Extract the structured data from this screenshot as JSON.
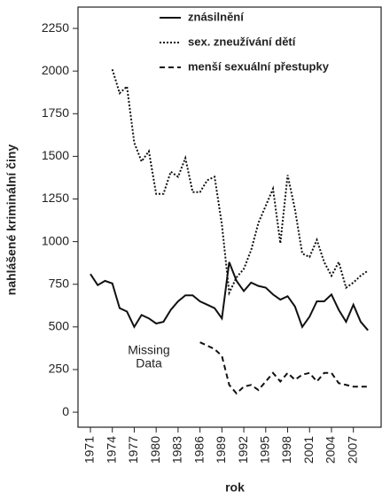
{
  "chart_data": {
    "type": "line",
    "x_label": "rok",
    "y_label": "nahlášené kriminální činy",
    "x": [
      1971,
      1972,
      1973,
      1974,
      1975,
      1976,
      1977,
      1978,
      1979,
      1980,
      1981,
      1982,
      1983,
      1984,
      1985,
      1986,
      1987,
      1988,
      1989,
      1990,
      1991,
      1992,
      1993,
      1994,
      1995,
      1996,
      1997,
      1998,
      1999,
      2000,
      2001,
      2002,
      2003,
      2004,
      2005,
      2006,
      2007,
      2008,
      2009
    ],
    "series": [
      {
        "name": "znásilnění",
        "color": "#111111",
        "style": "solid",
        "values": [
          810,
          745,
          770,
          755,
          610,
          590,
          500,
          570,
          550,
          520,
          530,
          600,
          650,
          685,
          685,
          650,
          630,
          610,
          550,
          880,
          770,
          710,
          760,
          740,
          730,
          690,
          660,
          680,
          620,
          500,
          560,
          650,
          650,
          690,
          600,
          530,
          630,
          530,
          480
        ]
      },
      {
        "name": "sex.  zneužívání dětí",
        "color": "#111111",
        "style": "dotted",
        "values": [
          null,
          null,
          null,
          2010,
          1870,
          1910,
          1580,
          1470,
          1530,
          1280,
          1280,
          1410,
          1380,
          1490,
          1290,
          1290,
          1360,
          1380,
          1100,
          700,
          790,
          840,
          950,
          1110,
          1210,
          1310,
          990,
          1390,
          1190,
          930,
          910,
          1010,
          880,
          800,
          880,
          730,
          760,
          800,
          830
        ]
      },
      {
        "name": "menší sexuální přestupky",
        "color": "#111111",
        "style": "dashed",
        "values": [
          null,
          null,
          null,
          null,
          null,
          null,
          null,
          null,
          null,
          null,
          null,
          null,
          null,
          null,
          null,
          410,
          390,
          370,
          330,
          160,
          110,
          150,
          160,
          130,
          180,
          230,
          180,
          230,
          190,
          220,
          230,
          180,
          230,
          230,
          170,
          160,
          150,
          150,
          150
        ]
      }
    ],
    "annotations": [
      "Missing",
      "Data"
    ],
    "xlim": [
      1969.3,
      2010.8
    ],
    "xticks": [
      1971,
      1974,
      1977,
      1980,
      1983,
      1986,
      1989,
      1992,
      1995,
      1998,
      2001,
      2004,
      2007
    ],
    "ylim": [
      -88,
      2375
    ],
    "yticks": [
      0,
      250,
      500,
      750,
      1000,
      1250,
      1500,
      1750,
      2000,
      2250
    ]
  }
}
